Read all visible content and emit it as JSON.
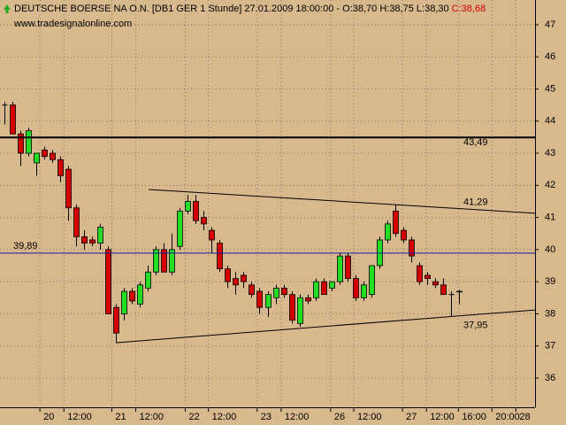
{
  "chart_data": {
    "type": "candlestick",
    "title": "DEUTSCHE BOERSE NA O.N. [DB1 GER  1 Stunde] 27.01.2009 18:00:00 - O:38,70 H:38,75 L:38,30",
    "title_close": "C:38,68",
    "subtitle": "www.tradesignalonline.com",
    "open": [
      44.5,
      44.5,
      43.6,
      43.0,
      42.7,
      43.1,
      43.0,
      42.8,
      42.5,
      41.3,
      40.4,
      40.3,
      40.2,
      40.0,
      38.2,
      38.0,
      38.7,
      38.3,
      38.8,
      39.3,
      40.0,
      39.3,
      40.1,
      41.2,
      41.5,
      41.0,
      40.6,
      40.2,
      39.4,
      39.1,
      39.2,
      38.9,
      38.7,
      38.2,
      38.5,
      38.8,
      38.6,
      37.7,
      38.5,
      38.5,
      39.0,
      38.8,
      39.0,
      39.8,
      39.1,
      38.5,
      38.6,
      39.5,
      40.3,
      41.2,
      40.6,
      40.3,
      39.5,
      39.2,
      39.0,
      38.9,
      38.6,
      38.7
    ],
    "high": [
      44.6,
      44.6,
      43.7,
      43.8,
      43.0,
      43.2,
      43.1,
      42.9,
      42.6,
      41.4,
      40.6,
      40.4,
      40.8,
      40.1,
      38.3,
      38.8,
      38.8,
      39.0,
      39.5,
      40.1,
      40.2,
      40.5,
      41.3,
      41.7,
      41.7,
      41.2,
      40.7,
      40.3,
      39.5,
      39.3,
      39.3,
      39.0,
      38.8,
      38.7,
      38.9,
      38.9,
      38.7,
      38.6,
      38.6,
      39.1,
      39.1,
      39.0,
      39.9,
      39.9,
      39.2,
      39.0,
      39.5,
      40.4,
      40.9,
      41.4,
      40.7,
      40.4,
      39.6,
      39.3,
      39.1,
      39.1,
      38.7,
      38.75
    ],
    "low": [
      43.9,
      43.6,
      42.6,
      42.9,
      42.3,
      42.8,
      42.7,
      42.1,
      40.9,
      40.1,
      40.0,
      40.1,
      40.0,
      38.0,
      37.1,
      37.8,
      38.3,
      38.2,
      38.7,
      39.2,
      39.3,
      39.2,
      40.0,
      41.1,
      40.8,
      40.6,
      39.9,
      39.3,
      38.8,
      38.6,
      38.8,
      38.5,
      38.0,
      37.9,
      38.3,
      38.5,
      37.7,
      37.6,
      38.3,
      38.4,
      38.6,
      38.7,
      38.9,
      39.0,
      38.4,
      38.4,
      38.5,
      39.4,
      40.2,
      40.4,
      40.2,
      39.6,
      38.9,
      38.9,
      38.8,
      38.6,
      37.9,
      38.3
    ],
    "close": [
      44.5,
      43.6,
      43.0,
      43.7,
      43.0,
      42.9,
      42.8,
      42.3,
      41.3,
      40.4,
      40.2,
      40.2,
      40.7,
      38.0,
      37.4,
      38.7,
      38.4,
      38.9,
      39.3,
      40.0,
      39.3,
      40.0,
      41.2,
      41.5,
      40.9,
      40.8,
      40.3,
      39.4,
      39.0,
      38.9,
      39.0,
      38.6,
      38.2,
      38.6,
      38.8,
      38.6,
      37.8,
      38.5,
      38.4,
      39.0,
      38.6,
      39.0,
      39.8,
      39.1,
      38.5,
      38.9,
      39.5,
      40.3,
      40.8,
      40.5,
      40.3,
      39.8,
      39.0,
      39.1,
      38.9,
      38.6,
      38.6,
      38.68
    ],
    "up_color": "#22dd22",
    "down_color": "#d40000",
    "xlim": [
      -0.5,
      66.5
    ],
    "xticks": [
      {
        "value": 4.5,
        "label": "20"
      },
      {
        "value": 7.5,
        "label": "12:00"
      },
      {
        "value": 13.5,
        "label": "21"
      },
      {
        "value": 16.5,
        "label": "12:00"
      },
      {
        "value": 22.7,
        "label": "22"
      },
      {
        "value": 25.6,
        "label": "12:00"
      },
      {
        "value": 31.7,
        "label": "23"
      },
      {
        "value": 34.7,
        "label": "12:00"
      },
      {
        "value": 40.9,
        "label": "26"
      },
      {
        "value": 43.8,
        "label": "12:00"
      },
      {
        "value": 49.9,
        "label": "27"
      },
      {
        "value": 52.9,
        "label": "12:00"
      },
      {
        "value": 56.9,
        "label": "16:00"
      },
      {
        "value": 61.1,
        "label": "20:00"
      },
      {
        "value": 64.1,
        "label": "28"
      }
    ],
    "ylim": [
      35.09,
      47.77
    ],
    "yticks": [
      36,
      37,
      38,
      39,
      40,
      41,
      42,
      43,
      44,
      45,
      46,
      47
    ],
    "grid": true,
    "lines": [
      {
        "label": "43,49",
        "x": [
          -0.5,
          66.5
        ],
        "y": [
          43.49,
          43.49
        ],
        "color": "#000000",
        "width": 2
      },
      {
        "label": "41,29",
        "x": [
          18.1,
          66.5
        ],
        "y": [
          41.87,
          41.13
        ],
        "color": "#000000",
        "width": 1
      },
      {
        "label": "39,89",
        "x": [
          -0.5,
          66.5
        ],
        "y": [
          39.89,
          39.89
        ],
        "color": "#1a1aa0",
        "width": 1
      },
      {
        "label": "37,95",
        "x": [
          14.0,
          66.5
        ],
        "y": [
          37.1,
          38.12
        ],
        "color": "#000000",
        "width": 1
      }
    ]
  }
}
